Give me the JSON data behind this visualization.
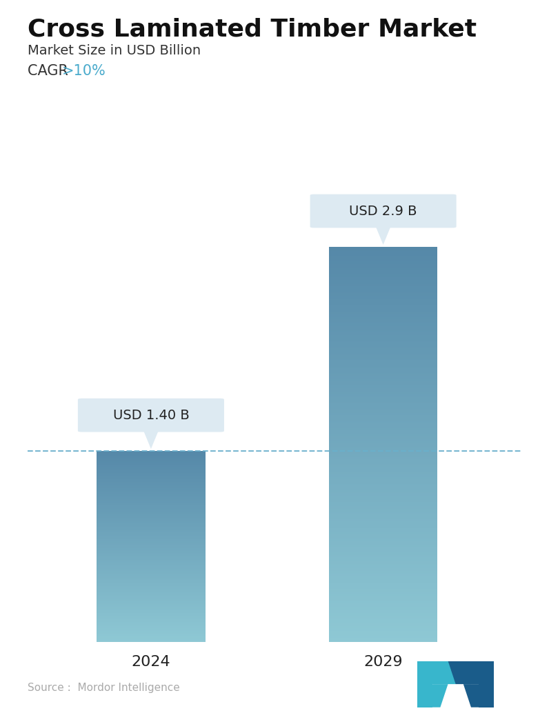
{
  "title": "Cross Laminated Timber Market",
  "subtitle": "Market Size in USD Billion",
  "cagr_label": "CAGR ",
  "cagr_value": ">10%",
  "cagr_color": "#4aabcc",
  "categories": [
    "2024",
    "2029"
  ],
  "values": [
    1.4,
    2.9
  ],
  "value_labels": [
    "USD 1.40 B",
    "USD 2.9 B"
  ],
  "bar_color_top": "#5588a8",
  "bar_color_bottom": "#8ec8d4",
  "dashed_line_color": "#6ab0cc",
  "dashed_line_y": 1.4,
  "source_text": "Source :  Mordor Intelligence",
  "source_color": "#aaaaaa",
  "background_color": "#ffffff",
  "ylim": [
    0,
    3.3
  ],
  "bar_width": 0.22,
  "x_positions": [
    0.25,
    0.72
  ],
  "tooltip_bg": "#ddeaf2",
  "title_fontsize": 26,
  "subtitle_fontsize": 14,
  "cagr_fontsize": 15,
  "tick_fontsize": 16,
  "label_fontsize": 14
}
